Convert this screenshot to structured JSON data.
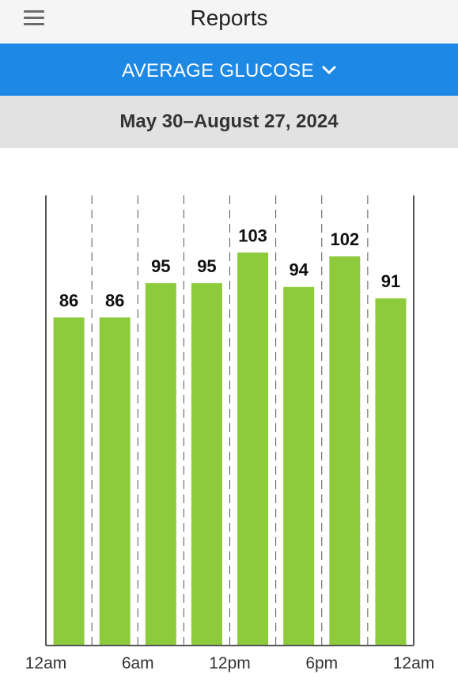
{
  "header": {
    "title": "Reports",
    "menu_icon": "hamburger-menu-icon"
  },
  "metric_selector": {
    "label": "AVERAGE GLUCOSE",
    "icon": "chevron-down-icon",
    "color": "#1e88e5"
  },
  "date_range": {
    "label": "May 30–August 27, 2024"
  },
  "chart_data": {
    "type": "bar",
    "categories": [
      "12am-3am",
      "3am-6am",
      "6am-9am",
      "9am-12pm",
      "12pm-3pm",
      "3pm-6pm",
      "6pm-9pm",
      "9pm-12am"
    ],
    "values": [
      86,
      86,
      95,
      95,
      103,
      94,
      102,
      91
    ],
    "x_tick_labels": [
      "12am",
      "6am",
      "12pm",
      "6pm",
      "12am"
    ],
    "title": "",
    "xlabel": "",
    "ylabel": "",
    "ylim": [
      0,
      118
    ],
    "bar_color": "#8dca3c",
    "grid": "vertical dashed",
    "data_labels": true
  }
}
